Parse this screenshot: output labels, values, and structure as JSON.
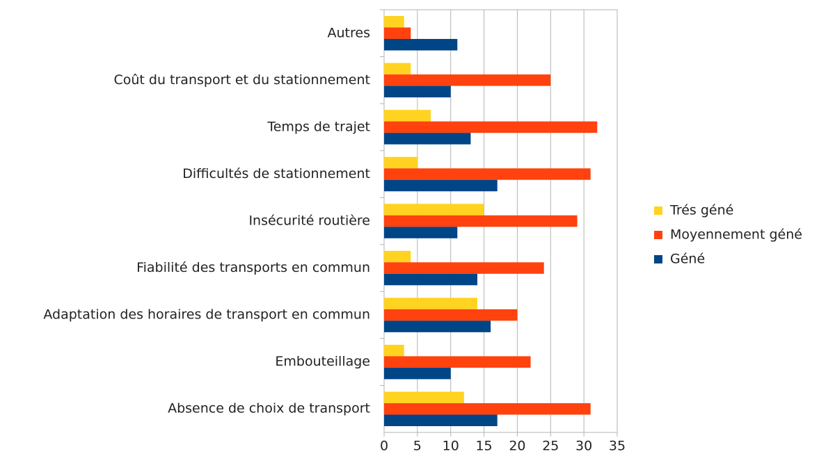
{
  "chart_data": {
    "type": "hbar",
    "categories": [
      "Autres",
      "Coût du transport et du stationnement",
      "Temps de trajet",
      "Difficultés de stationnement",
      "Insécurité routière",
      "Fiabilité des transports en commun",
      "Adaptation des horaires de transport en commun",
      "Embouteillage",
      "Absence de choix de transport"
    ],
    "series": [
      {
        "name": "Trés géné",
        "color": "#ffd320",
        "values": [
          3,
          4,
          7,
          5,
          15,
          4,
          14,
          3,
          12
        ]
      },
      {
        "name": "Moyennement géné",
        "color": "#ff420e",
        "values": [
          4,
          25,
          32,
          31,
          29,
          24,
          20,
          22,
          31
        ]
      },
      {
        "name": "Géné",
        "color": "#004586",
        "values": [
          11,
          10,
          13,
          17,
          11,
          14,
          16,
          10,
          17
        ]
      }
    ],
    "xlim": [
      0,
      35
    ],
    "xticks": [
      0,
      5,
      10,
      15,
      20,
      25,
      30,
      35
    ],
    "grid": true,
    "legend": "right"
  }
}
